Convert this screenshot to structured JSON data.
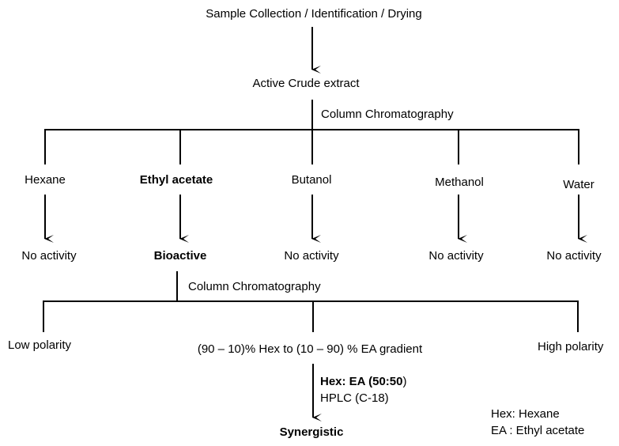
{
  "steps": {
    "collection": "Sample Collection / Identification / Drying",
    "crude": "Active Crude extract",
    "cc1": "Column Chromatography",
    "cc2": "Column Chromatography"
  },
  "solvents": [
    {
      "name": "Hexane",
      "result": "No activity"
    },
    {
      "name": "Ethyl acetate",
      "result": "Bioactive"
    },
    {
      "name": "Butanol",
      "result": "No activity"
    },
    {
      "name": "Methanol",
      "result": "No activity"
    },
    {
      "name": "Water",
      "result": "No activity"
    }
  ],
  "gradient": {
    "low": "Low polarity",
    "middle": "(90 – 10)% Hex to (10 – 90) % EA gradient",
    "high": "High polarity"
  },
  "final": {
    "ratio_bold": "Hex: EA (50:50",
    "ratio_close": ")",
    "hplc": "HPLC (C-18)",
    "result": "Synergistic"
  },
  "legend": {
    "hex": "Hex: Hexane",
    "ea": "EA : Ethyl acetate"
  }
}
